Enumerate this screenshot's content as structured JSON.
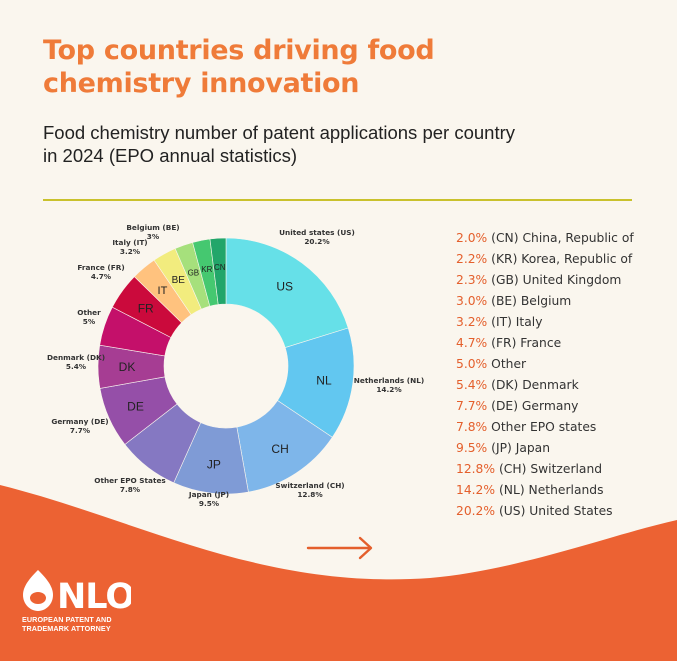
{
  "header": {
    "title_line1": "Top countries driving food",
    "title_line2": "chemistry innovation",
    "subtitle_line1": "Food chemistry number of patent applications per country",
    "subtitle_line2": "in 2024 (EPO annual statistics)"
  },
  "chart_data": {
    "type": "pie",
    "variant": "donut",
    "slices": [
      {
        "code": "US",
        "label": "United states (US)",
        "value": 20.2,
        "value_label": "20.2%",
        "color": "#66e0e8"
      },
      {
        "code": "NL",
        "label": "Netherlands (NL)",
        "value": 14.2,
        "value_label": "14.2%",
        "color": "#62c7f0"
      },
      {
        "code": "CH",
        "label": "Switzerland (CH)",
        "value": 12.8,
        "value_label": "12.8%",
        "color": "#7eb6ea"
      },
      {
        "code": "JP",
        "label": "Japan (JP)",
        "value": 9.5,
        "value_label": "9.5%",
        "color": "#7f9bd6"
      },
      {
        "code": "",
        "label": "Other EPO States",
        "value": 7.8,
        "value_label": "7.8%",
        "color": "#8578c2"
      },
      {
        "code": "DE",
        "label": "Germany (DE)",
        "value": 7.7,
        "value_label": "7.7%",
        "color": "#954fa8"
      },
      {
        "code": "DK",
        "label": "Denmark (DK)",
        "value": 5.4,
        "value_label": "5.4%",
        "color": "#a63d93"
      },
      {
        "code": "",
        "label": "Other",
        "value": 5.0,
        "value_label": "5%",
        "color": "#c4106a"
      },
      {
        "code": "FR",
        "label": "France (FR)",
        "value": 4.7,
        "value_label": "4.7%",
        "color": "#cb0a3c"
      },
      {
        "code": "IT",
        "label": "Italy (IT)",
        "value": 3.2,
        "value_label": "3.2%",
        "color": "#ffc27e"
      },
      {
        "code": "BE",
        "label": "Belgium (BE)",
        "value": 3.0,
        "value_label": "3%",
        "color": "#f2ec7e"
      },
      {
        "code": "GB",
        "label": "",
        "value": 2.3,
        "value_label": "",
        "color": "#a6e07c"
      },
      {
        "code": "KR",
        "label": "",
        "value": 2.2,
        "value_label": "",
        "color": "#45c870"
      },
      {
        "code": "CN",
        "label": "",
        "value": 2.0,
        "value_label": "",
        "color": "#22a66a"
      }
    ],
    "legend_position": "right"
  },
  "legend": {
    "items": [
      {
        "pct": "2.0%",
        "text": " (CN) China, Republic of"
      },
      {
        "pct": "2.2%",
        "text": " (KR) Korea, Republic of"
      },
      {
        "pct": "2.3%",
        "text": " (GB) United Kingdom"
      },
      {
        "pct": "3.0%",
        "text": " (BE) Belgium"
      },
      {
        "pct": "3.2%",
        "text": " (IT) Italy"
      },
      {
        "pct": "4.7%",
        "text": " (FR) France"
      },
      {
        "pct": "5.0%",
        "text": " Other"
      },
      {
        "pct": "5.4%",
        "text": " (DK) Denmark"
      },
      {
        "pct": "7.7%",
        "text": " (DE) Germany"
      },
      {
        "pct": "7.8%",
        "text": " Other EPO states"
      },
      {
        "pct": "9.5%",
        "text": " (JP) Japan"
      },
      {
        "pct": "12.8%",
        "text": " (CH) Switzerland"
      },
      {
        "pct": "14.2%",
        "text": " (NL) Netherlands"
      },
      {
        "pct": "20.2%",
        "text": " (US) United States"
      }
    ]
  },
  "footer": {
    "logo_text": "NLO",
    "tagline_line1": "EUROPEAN PATENT AND",
    "tagline_line2": "TRADEMARK ATTORNEY",
    "arrow_icon": "arrow-right-icon"
  },
  "colors": {
    "background": "#faf6ee",
    "title": "#ef7b39",
    "divider": "#c9c12c",
    "legend_pct": "#e45f2c",
    "footer": "#ec6233",
    "arrow": "#e45f2c"
  }
}
